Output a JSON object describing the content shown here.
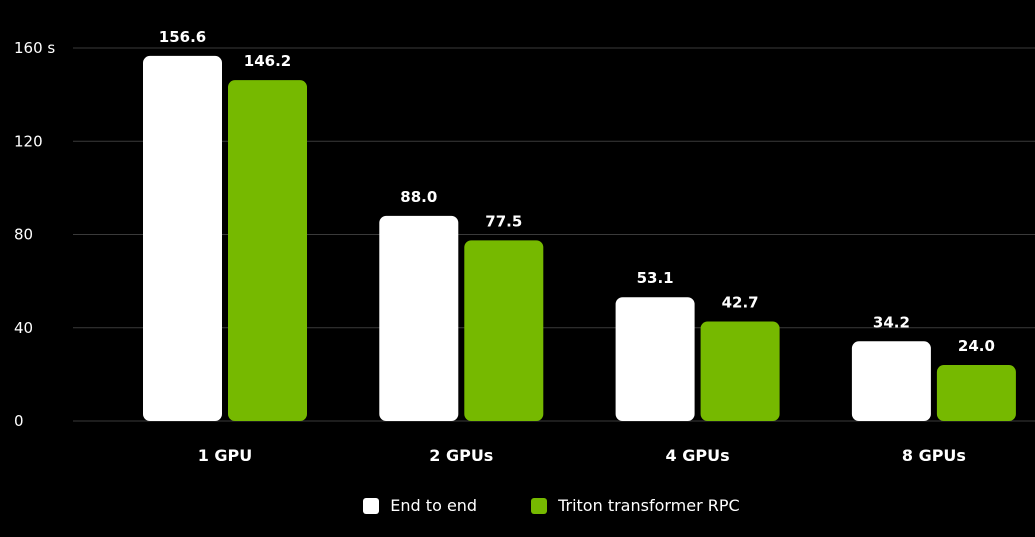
{
  "chart_data": {
    "type": "bar",
    "categories": [
      "1 GPU",
      "2 GPUs",
      "4 GPUs",
      "8 GPUs"
    ],
    "series": [
      {
        "name": "End to end",
        "values": [
          156.6,
          88.0,
          53.1,
          34.2
        ],
        "labels": [
          "156.6",
          "88.0",
          "53.1",
          "34.2"
        ],
        "color": "#ffffff"
      },
      {
        "name": "Triton transformer RPC",
        "values": [
          146.2,
          77.5,
          42.7,
          24.0
        ],
        "labels": [
          "146.2",
          "77.5",
          "42.7",
          "24.0"
        ],
        "color": "#76b900"
      }
    ],
    "yticks": [
      "0",
      "40",
      "80",
      "120",
      "160 s"
    ],
    "ytick_values": [
      0,
      40,
      80,
      120,
      160
    ],
    "ylim": [
      0,
      160
    ],
    "grid": true,
    "legend_position": "bottom-center",
    "title": "",
    "xlabel": "",
    "ylabel": ""
  },
  "colors": {
    "background": "#000000",
    "grid": "#3a3a3a",
    "text": "#ffffff"
  }
}
